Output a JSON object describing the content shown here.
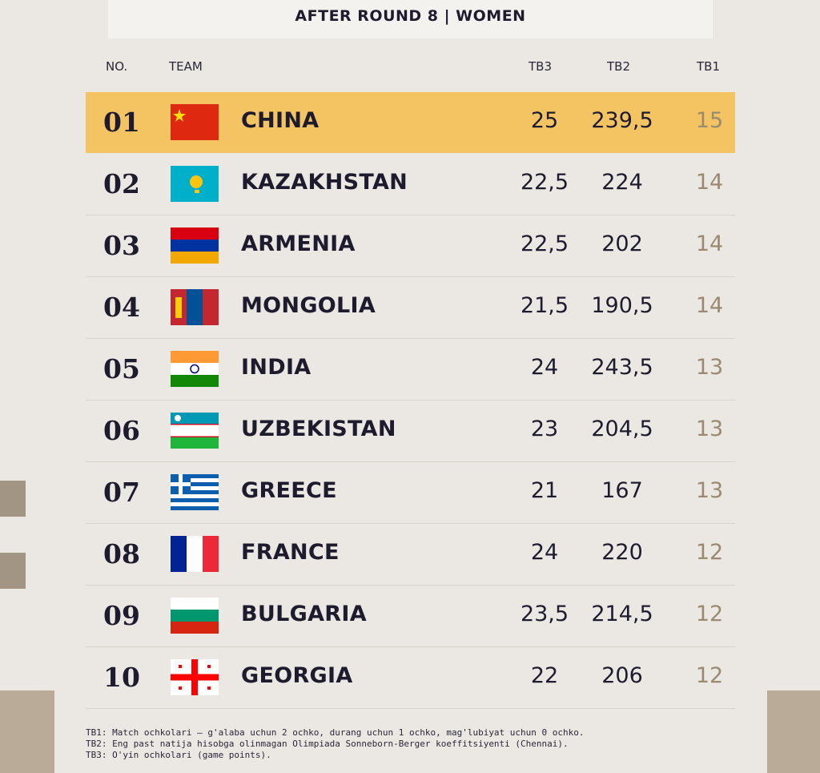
{
  "header": {
    "title": "AFTER ROUND 8 | WOMEN"
  },
  "table": {
    "columns": [
      "NO.",
      "TEAM",
      "TB3",
      "TB2",
      "TB1"
    ],
    "rows": [
      [
        "01",
        "CHINA",
        "25",
        "239,5",
        "15"
      ],
      [
        "02",
        "KAZAKHSTAN",
        "22,5",
        "224",
        "14"
      ],
      [
        "03",
        "ARMENIA",
        "22,5",
        "202",
        "14"
      ],
      [
        "04",
        "MONGOLIA",
        "21,5",
        "190,5",
        "14"
      ],
      [
        "05",
        "INDIA",
        "24",
        "243,5",
        "13"
      ],
      [
        "06",
        "UZBEKISTAN",
        "23",
        "204,5",
        "13"
      ],
      [
        "07",
        "GREECE",
        "21",
        "167",
        "13"
      ],
      [
        "08",
        "FRANCE",
        "24",
        "220",
        "12"
      ],
      [
        "09",
        "BULGARIA",
        "23,5",
        "214,5",
        "12"
      ],
      [
        "10",
        "GEORGIA",
        "22",
        "206",
        "12"
      ]
    ]
  },
  "footnotes": [
    "TB1: Match ochkolari — g'alaba uchun 2 ochko, durang uchun 1 ochko, mag'lubiyat uchun 0 ochko.",
    "TB2: Eng past natija hisobga olinmagan Olimpiada Sonneborn-Berger koeffitsiyenti (Chennai).",
    "TB3: O'yin ochkolari (game points)."
  ]
}
